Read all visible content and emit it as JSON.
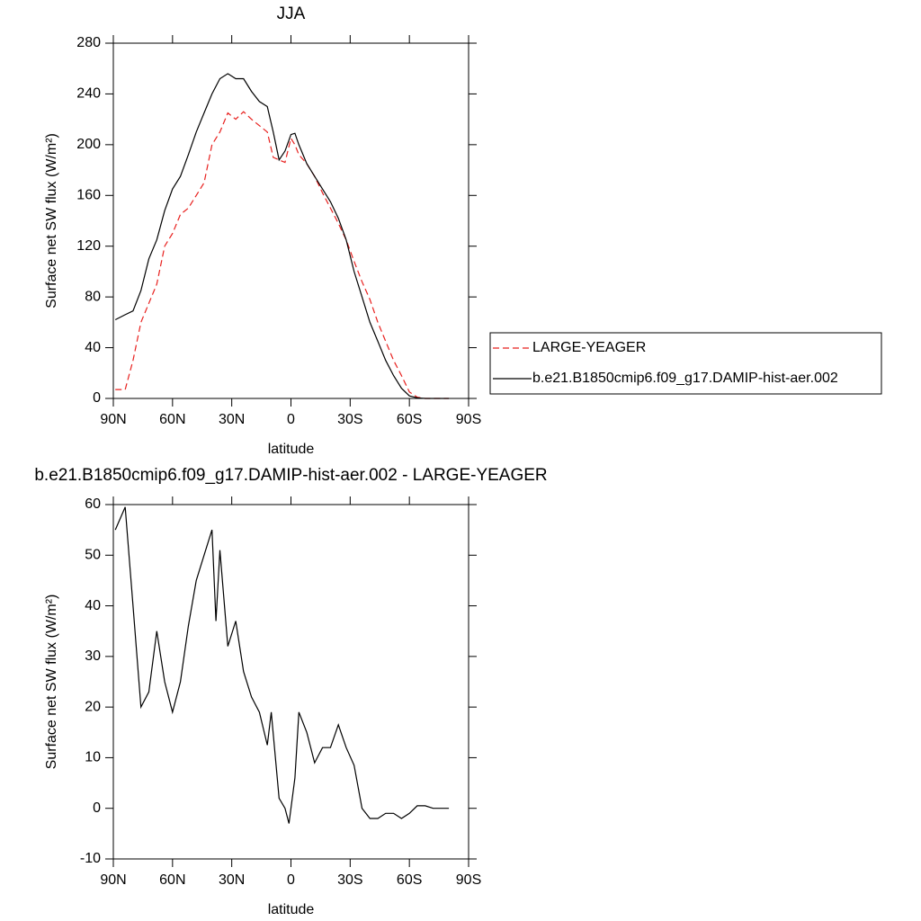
{
  "chart_data": [
    {
      "type": "line",
      "title": "JJA",
      "x_label": "latitude",
      "y_label": "Surface net SW flux (W/m²)",
      "x": [
        89,
        84,
        80,
        76,
        72,
        68,
        64,
        60,
        56,
        52,
        48,
        44,
        40,
        36,
        32,
        28,
        24,
        20,
        16,
        12,
        9,
        6,
        3,
        0,
        -2,
        -4,
        -8,
        -12,
        -16,
        -20,
        -24,
        -28,
        -32,
        -36,
        -40,
        -44,
        -48,
        -52,
        -56,
        -60,
        -64,
        -68,
        -72,
        -76,
        -80
      ],
      "series": [
        {
          "name": "LARGE-YEAGER",
          "color": "#e8201e",
          "dashed": true,
          "values": [
            7,
            7,
            30,
            60,
            75,
            90,
            120,
            130,
            145,
            150,
            160,
            170,
            200,
            210,
            225,
            220,
            226,
            220,
            215,
            210,
            190,
            188,
            186,
            205,
            200,
            192,
            185,
            175,
            162,
            150,
            138,
            125,
            108,
            92,
            78,
            60,
            45,
            30,
            18,
            5,
            1,
            0,
            0,
            0,
            0
          ]
        },
        {
          "name": "b.e21.B1850cmip6.f09_g17.DAMIP-hist-aer.002",
          "color": "#000000",
          "dashed": false,
          "values": [
            62,
            66,
            69,
            85,
            110,
            125,
            148,
            165,
            175,
            192,
            210,
            225,
            240,
            252,
            256,
            252,
            252,
            242,
            234,
            230,
            210,
            188,
            195,
            208,
            209,
            200,
            185,
            175,
            165,
            155,
            142,
            125,
            100,
            80,
            60,
            45,
            30,
            18,
            8,
            2,
            0.5,
            0,
            0,
            0,
            0
          ]
        }
      ],
      "xlim": [
        90,
        -90
      ],
      "xticks": [
        {
          "value": 90,
          "label": "90N"
        },
        {
          "value": 60,
          "label": "60N"
        },
        {
          "value": 30,
          "label": "30N"
        },
        0,
        {
          "value": -30,
          "label": "30S"
        },
        {
          "value": -60,
          "label": "60S"
        },
        {
          "value": -90,
          "label": "90S"
        }
      ],
      "ylim": [
        0,
        280
      ],
      "yticks": [
        0,
        40,
        80,
        120,
        160,
        200,
        240,
        280
      ],
      "legend": "outside-right"
    },
    {
      "type": "line",
      "title": "b.e21.B1850cmip6.f09_g17.DAMIP-hist-aer.002 - LARGE-YEAGER",
      "x_label": "latitude",
      "y_label": "Surface net SW flux (W/m²)",
      "x": [
        89,
        84,
        80,
        76,
        72,
        68,
        64,
        60,
        56,
        52,
        48,
        44,
        40,
        38,
        36,
        32,
        28,
        24,
        20,
        16,
        12,
        10,
        6,
        3,
        1,
        -2,
        -4,
        -8,
        -12,
        -16,
        -20,
        -24,
        -28,
        -32,
        -36,
        -40,
        -44,
        -48,
        -52,
        -56,
        -60,
        -64,
        -68,
        -72,
        -76,
        -80
      ],
      "series": [
        {
          "color": "#000000",
          "dashed": false,
          "values": [
            55,
            59.5,
            40,
            20,
            23,
            35,
            25,
            19,
            25,
            36,
            45,
            50,
            55,
            37,
            51,
            32,
            37,
            27,
            22,
            19,
            12.5,
            19,
            2,
            0,
            -3,
            6,
            19,
            15,
            9,
            12,
            12,
            16.5,
            12,
            8.5,
            0,
            -2,
            -2,
            -1,
            -1,
            -2,
            -1,
            0.5,
            0.5,
            0,
            0,
            0
          ]
        }
      ],
      "xlim": [
        90,
        -90
      ],
      "xticks": [
        {
          "value": 90,
          "label": "90N"
        },
        {
          "value": 60,
          "label": "60N"
        },
        {
          "value": 30,
          "label": "30N"
        },
        0,
        {
          "value": -30,
          "label": "30S"
        },
        {
          "value": -60,
          "label": "60S"
        },
        {
          "value": -90,
          "label": "90S"
        }
      ],
      "ylim": [
        -10,
        60
      ],
      "yticks": [
        -10,
        0,
        10,
        20,
        30,
        40,
        50,
        60
      ]
    }
  ]
}
